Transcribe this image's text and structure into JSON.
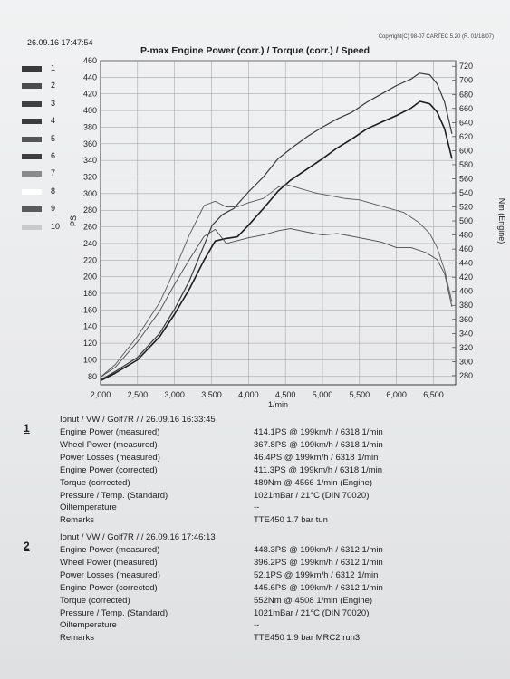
{
  "header": {
    "date": "26.09.16 17:47:54",
    "copyright": "Copyright(C) 98-07 CARTEC 5.20 (R. 01/18/07)"
  },
  "chart_data": {
    "type": "line",
    "title": "P-max Engine Power (corr.) / Torque (corr.) / Speed",
    "xlabel": "1/min",
    "ylabel_left": "PS",
    "ylabel_right": "Nm (Engine)",
    "xlim": [
      2000,
      6800
    ],
    "ylim_left": [
      70,
      460
    ],
    "ylim_right": [
      267,
      728
    ],
    "x_ticks": [
      "2,000",
      "2,500",
      "3,000",
      "3,500",
      "4,000",
      "4,500",
      "5,000",
      "5,500",
      "6,000",
      "6,500"
    ],
    "y_ticks_left": [
      "80",
      "100",
      "120",
      "140",
      "160",
      "180",
      "200",
      "220",
      "240",
      "260",
      "280",
      "300",
      "320",
      "340",
      "360",
      "380",
      "400",
      "420",
      "440",
      "460"
    ],
    "y_ticks_right": [
      "280",
      "300",
      "320",
      "340",
      "360",
      "380",
      "400",
      "420",
      "440",
      "460",
      "480",
      "500",
      "520",
      "540",
      "560",
      "580",
      "600",
      "620",
      "640",
      "660",
      "680",
      "700",
      "720"
    ],
    "legend": [
      "1",
      "2",
      "3",
      "4",
      "5",
      "6",
      "7",
      "8",
      "9",
      "10"
    ],
    "legend_colors": [
      "#3a3a3c",
      "#4c4c4e",
      "#404042",
      "#3b3b3d",
      "#555557",
      "#3e3e40",
      "#8a8a8c",
      "#ffffff",
      "#5a5a5c",
      "#c9c9cb"
    ],
    "grid": true,
    "series": [
      {
        "name": "1",
        "axis": "left",
        "color": "#1d1d1f",
        "width": 1.6,
        "x": [
          2000,
          2200,
          2500,
          2800,
          3000,
          3200,
          3400,
          3550,
          3700,
          3850,
          4000,
          4200,
          4400,
          4566,
          4800,
          5000,
          5200,
          5400,
          5600,
          5800,
          6000,
          6200,
          6318,
          6450,
          6550,
          6650,
          6750
        ],
        "y": [
          75,
          84,
          100,
          128,
          155,
          185,
          220,
          243,
          246,
          248,
          262,
          282,
          303,
          316,
          330,
          342,
          355,
          366,
          378,
          386,
          394,
          403,
          411,
          408,
          398,
          378,
          342
        ]
      },
      {
        "name": "2",
        "axis": "left",
        "color": "#3a3a3c",
        "width": 1.2,
        "x": [
          2000,
          2200,
          2500,
          2800,
          3000,
          3200,
          3400,
          3508,
          3650,
          3800,
          4000,
          4200,
          4400,
          4600,
          4800,
          5000,
          5200,
          5400,
          5600,
          5800,
          6000,
          6200,
          6312,
          6450,
          6550,
          6650,
          6750
        ],
        "y": [
          76,
          86,
          103,
          132,
          161,
          195,
          238,
          262,
          275,
          282,
          302,
          320,
          342,
          356,
          369,
          380,
          390,
          398,
          410,
          420,
          430,
          438,
          445,
          443,
          432,
          410,
          372
        ]
      },
      {
        "name": "1",
        "axis": "right",
        "color": "#4a4a4c",
        "width": 0.9,
        "x": [
          2000,
          2200,
          2500,
          2800,
          3000,
          3200,
          3400,
          3550,
          3700,
          3850,
          4000,
          4200,
          4400,
          4566,
          4800,
          5000,
          5200,
          5400,
          5600,
          5800,
          6000,
          6200,
          6400,
          6550,
          6650,
          6750
        ],
        "y": [
          278,
          292,
          328,
          372,
          410,
          445,
          478,
          488,
          468,
          472,
          476,
          480,
          486,
          489,
          484,
          480,
          482,
          478,
          474,
          470,
          462,
          462,
          455,
          445,
          425,
          378
        ]
      },
      {
        "name": "2",
        "axis": "right",
        "color": "#5a5a5c",
        "width": 0.9,
        "x": [
          2000,
          2200,
          2500,
          2800,
          3000,
          3200,
          3400,
          3550,
          3700,
          3850,
          4000,
          4200,
          4400,
          4508,
          4700,
          4900,
          5100,
          5300,
          5500,
          5700,
          5900,
          6100,
          6300,
          6450,
          6550,
          6650,
          6750
        ],
        "y": [
          278,
          296,
          336,
          384,
          430,
          480,
          522,
          528,
          520,
          520,
          526,
          532,
          548,
          552,
          546,
          540,
          536,
          532,
          530,
          524,
          518,
          512,
          498,
          482,
          462,
          430,
          385
        ]
      }
    ]
  },
  "runs": [
    {
      "number": "1",
      "title": "Ionut / VW / Golf7R /  / 26.09.16 16:33:45",
      "rows": [
        {
          "label": "Engine Power (measured)",
          "value": "414.1PS @ 199km/h / 6318 1/min"
        },
        {
          "label": "Wheel Power (measured)",
          "value": "367.8PS @ 199km/h / 6318 1/min"
        },
        {
          "label": "Power Losses (measured)",
          "value": "46.4PS @ 199km/h / 6318 1/min"
        },
        {
          "label": "Engine Power (corrected)",
          "value": "411.3PS @ 199km/h / 6318 1/min"
        },
        {
          "label": "Torque (corrected)",
          "value": "489Nm @ 4566 1/min (Engine)"
        },
        {
          "label": "Pressure / Temp. (Standard)",
          "value": "1021mBar / 21°C   (DIN 70020)"
        },
        {
          "label": "Oiltemperature",
          "value": "--"
        },
        {
          "label": "Remarks",
          "value": "TTE450 1.7 bar tun"
        }
      ]
    },
    {
      "number": "2",
      "title": "Ionut / VW / Golf7R /  / 26.09.16 17:46:13",
      "rows": [
        {
          "label": "Engine Power (measured)",
          "value": "448.3PS @ 199km/h / 6312 1/min"
        },
        {
          "label": "Wheel Power (measured)",
          "value": "396.2PS @ 199km/h / 6312 1/min"
        },
        {
          "label": "Power Losses (measured)",
          "value": "52.1PS @ 199km/h / 6312 1/min"
        },
        {
          "label": "Engine Power (corrected)",
          "value": "445.6PS @ 199km/h / 6312 1/min"
        },
        {
          "label": "Torque (corrected)",
          "value": "552Nm @ 4508 1/min (Engine)"
        },
        {
          "label": "Pressure / Temp. (Standard)",
          "value": "1021mBar / 21°C   (DIN 70020)"
        },
        {
          "label": "Oiltemperature",
          "value": "--"
        },
        {
          "label": "Remarks",
          "value": "TTE450 1.9 bar MRC2 run3"
        }
      ]
    }
  ]
}
